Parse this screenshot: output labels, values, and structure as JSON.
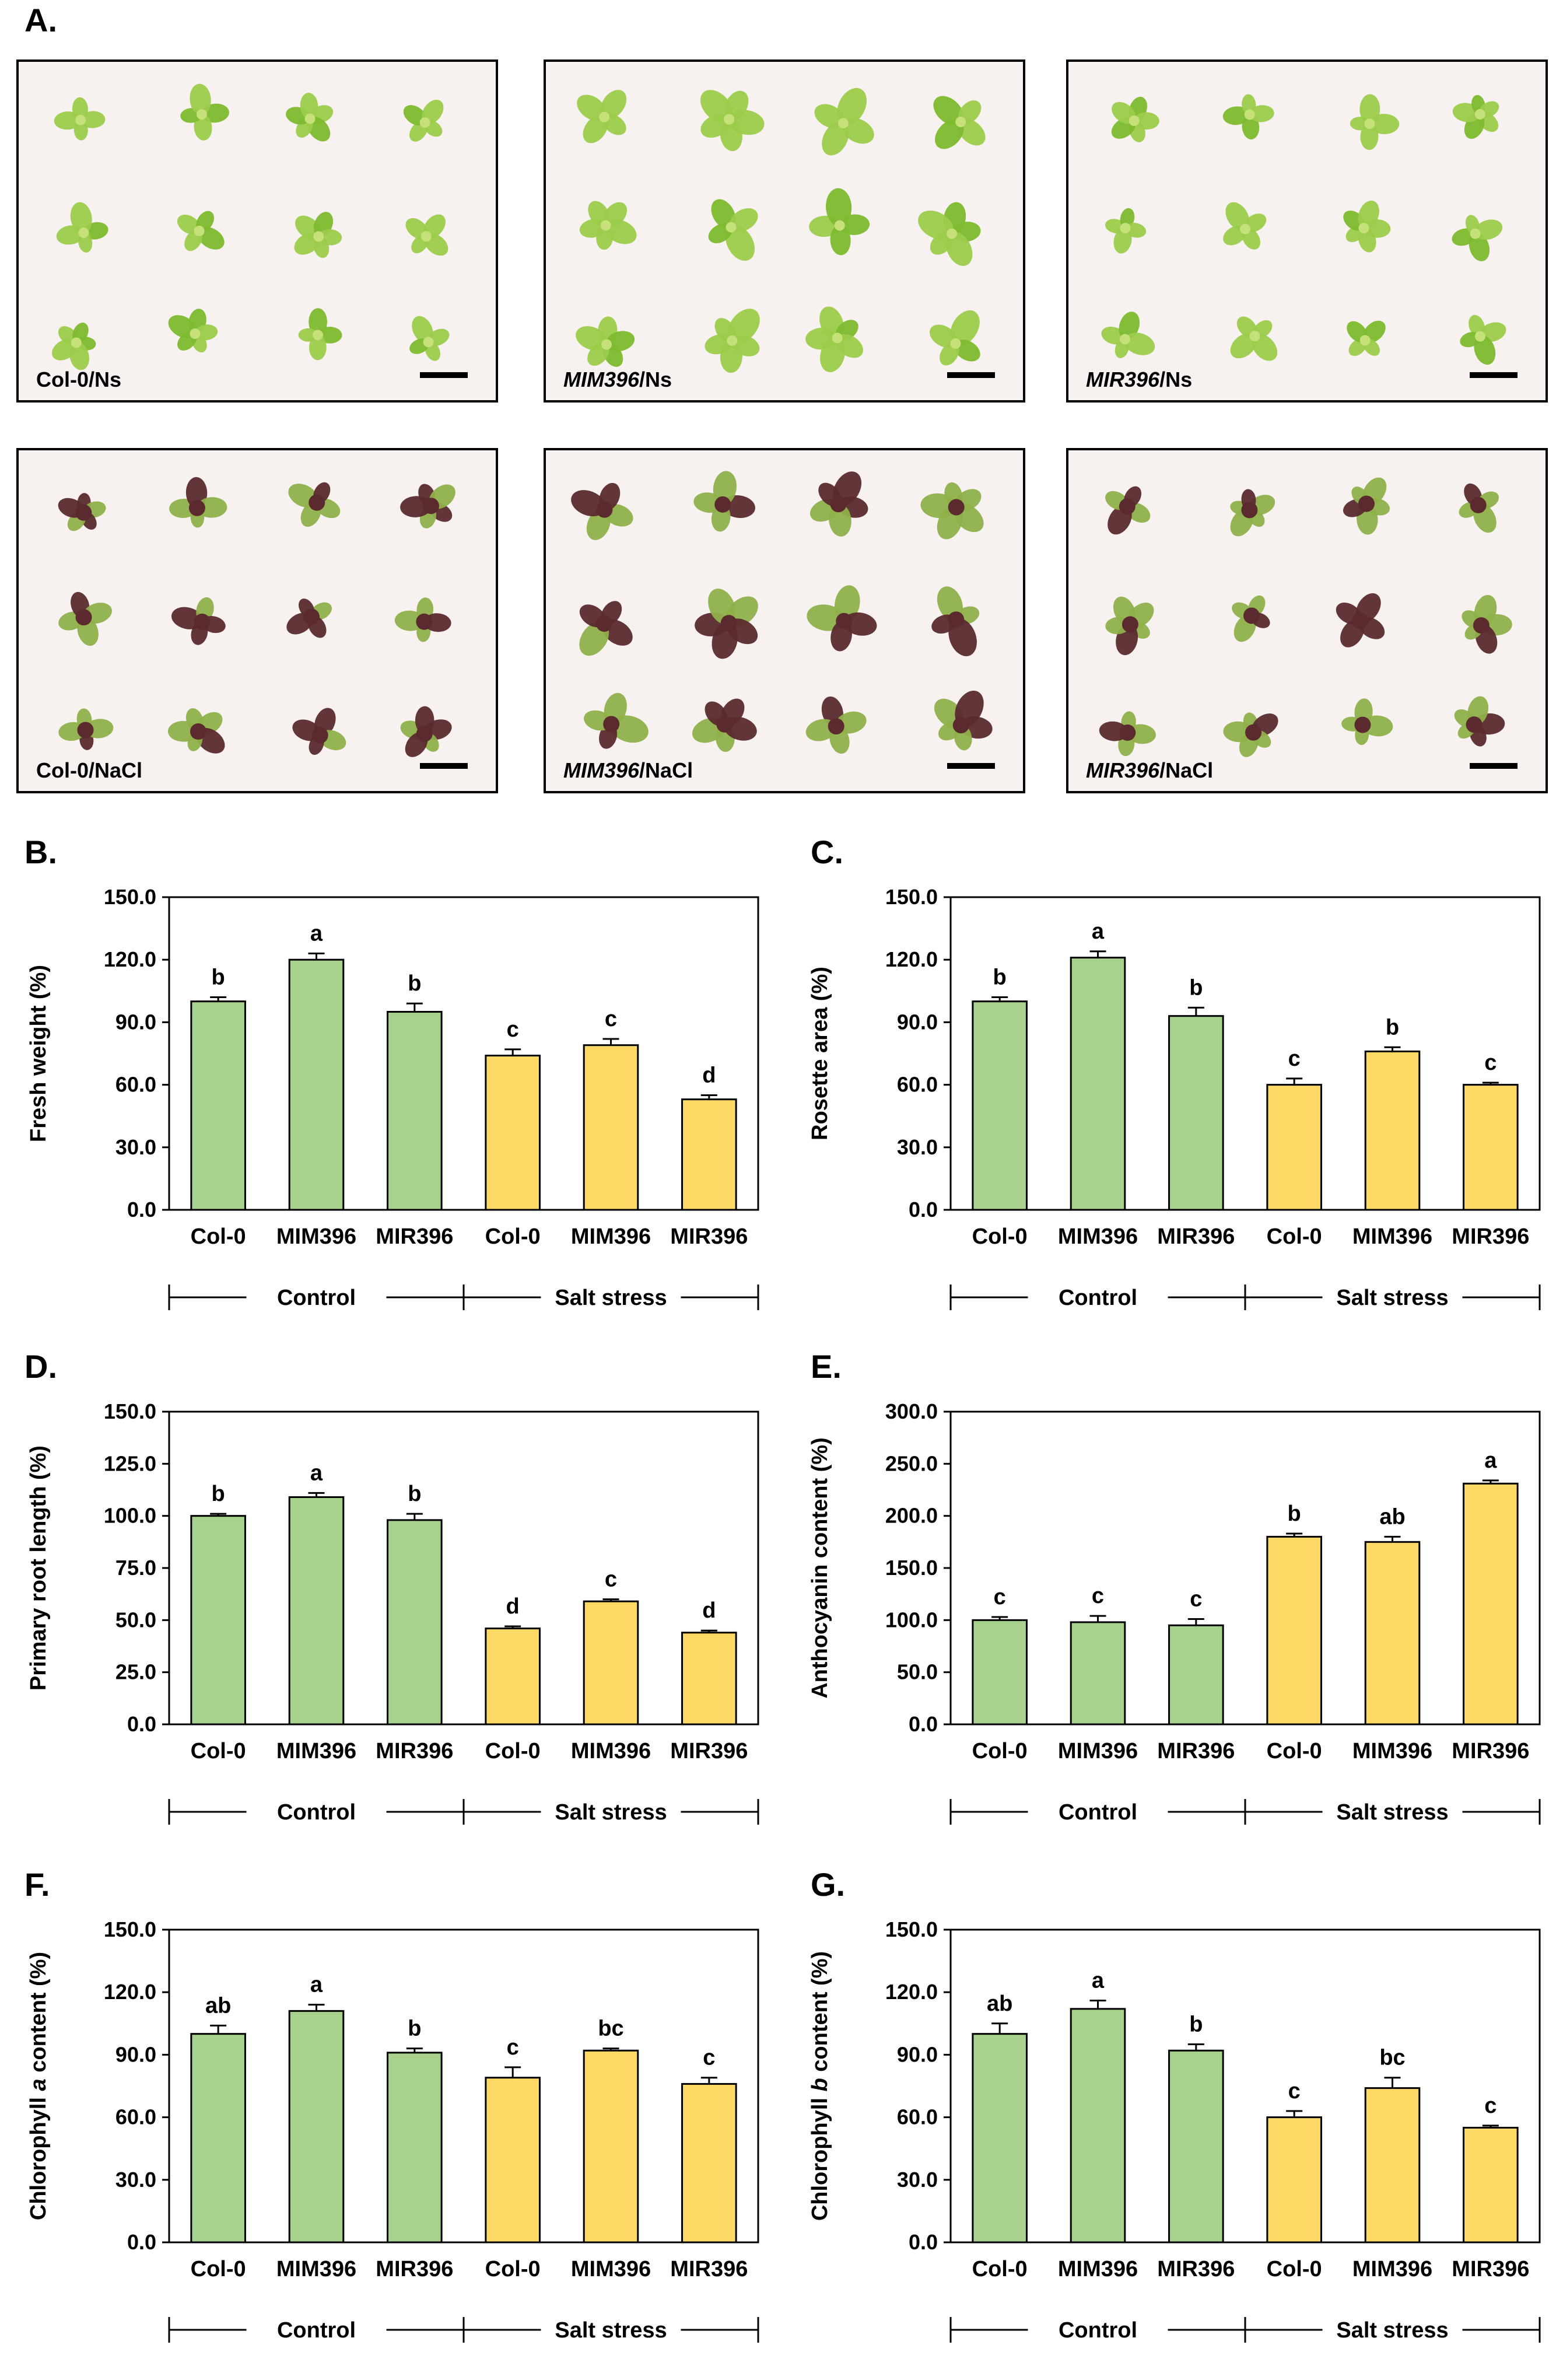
{
  "panels": {
    "A": "A.",
    "B": "B.",
    "C": "C.",
    "D": "D.",
    "E": "E.",
    "F": "F.",
    "G": "G."
  },
  "photos": [
    {
      "genotype": "Col-0",
      "italic": false,
      "condition": "/Ns",
      "treatment": "control"
    },
    {
      "genotype": "MIM396",
      "italic": true,
      "condition": "/Ns",
      "treatment": "control"
    },
    {
      "genotype": "MIR396",
      "italic": true,
      "condition": "/Ns",
      "treatment": "control"
    },
    {
      "genotype": "Col-0",
      "italic": false,
      "condition": "/NaCl",
      "treatment": "salt"
    },
    {
      "genotype": "MIM396",
      "italic": true,
      "condition": "/NaCl",
      "treatment": "salt"
    },
    {
      "genotype": "MIR396",
      "italic": true,
      "condition": "/NaCl",
      "treatment": "salt"
    }
  ],
  "colors": {
    "control_bar": "#a9d18e",
    "salt_bar": "#ffd966",
    "leaf_green": "#9ccc4a",
    "leaf_dark": "#5a2a2e",
    "photo_bg": "#f7f1ef"
  },
  "chart_data": [
    {
      "id": "B",
      "type": "bar",
      "ylabel": "Fresh weight (%)",
      "ylabel_italic_part": "",
      "ylim": [
        0,
        150
      ],
      "yticks": [
        "0.0",
        "30.0",
        "60.0",
        "90.0",
        "120.0",
        "150.0"
      ],
      "categories": [
        "Col-0",
        "MIM396",
        "MIR396",
        "Col-0",
        "MIM396",
        "MIR396"
      ],
      "values": [
        100,
        120,
        95,
        74,
        79,
        53
      ],
      "errors": [
        2,
        3,
        4,
        3,
        3,
        2
      ],
      "letters": [
        "b",
        "a",
        "b",
        "c",
        "c",
        "d"
      ],
      "groups": [
        "Control",
        "Salt stress"
      ]
    },
    {
      "id": "C",
      "type": "bar",
      "ylabel": "Rosette area (%)",
      "ylabel_italic_part": "",
      "ylim": [
        0,
        150
      ],
      "yticks": [
        "0.0",
        "30.0",
        "60.0",
        "90.0",
        "120.0",
        "150.0"
      ],
      "categories": [
        "Col-0",
        "MIM396",
        "MIR396",
        "Col-0",
        "MIM396",
        "MIR396"
      ],
      "values": [
        100,
        121,
        93,
        60,
        76,
        60
      ],
      "errors": [
        2,
        3,
        4,
        3,
        2,
        1
      ],
      "letters": [
        "b",
        "a",
        "b",
        "c",
        "b",
        "c"
      ],
      "groups": [
        "Control",
        "Salt stress"
      ]
    },
    {
      "id": "D",
      "type": "bar",
      "ylabel": "Primary root length (%)",
      "ylabel_italic_part": "",
      "ylim": [
        0,
        150
      ],
      "yticks": [
        "0.0",
        "25.0",
        "50.0",
        "75.0",
        "100.0",
        "125.0",
        "150.0"
      ],
      "categories": [
        "Col-0",
        "MIM396",
        "MIR396",
        "Col-0",
        "MIM396",
        "MIR396"
      ],
      "values": [
        100,
        109,
        98,
        46,
        59,
        44
      ],
      "errors": [
        1,
        2,
        3,
        1,
        1,
        1
      ],
      "letters": [
        "b",
        "a",
        "b",
        "d",
        "c",
        "d"
      ],
      "groups": [
        "Control",
        "Salt stress"
      ]
    },
    {
      "id": "E",
      "type": "bar",
      "ylabel": "Anthocyanin content (%)",
      "ylabel_italic_part": "",
      "ylim": [
        0,
        300
      ],
      "yticks": [
        "0.0",
        "50.0",
        "100.0",
        "150.0",
        "200.0",
        "250.0",
        "300.0"
      ],
      "categories": [
        "Col-0",
        "MIM396",
        "MIR396",
        "Col-0",
        "MIM396",
        "MIR396"
      ],
      "values": [
        100,
        98,
        95,
        180,
        175,
        231
      ],
      "errors": [
        3,
        6,
        6,
        3,
        5,
        3
      ],
      "letters": [
        "c",
        "c",
        "c",
        "b",
        "ab",
        "a"
      ],
      "groups": [
        "Control",
        "Salt stress"
      ]
    },
    {
      "id": "F",
      "type": "bar",
      "ylabel": "Chlorophyll a content  (%)",
      "ylabel_italic_part": "a",
      "ylim": [
        0,
        150
      ],
      "yticks": [
        "0.0",
        "30.0",
        "60.0",
        "90.0",
        "120.0",
        "150.0"
      ],
      "categories": [
        "Col-0",
        "MIM396",
        "MIR396",
        "Col-0",
        "MIM396",
        "MIR396"
      ],
      "values": [
        100,
        111,
        91,
        79,
        92,
        76
      ],
      "errors": [
        4,
        3,
        2,
        5,
        1,
        3
      ],
      "letters": [
        "ab",
        "a",
        "b",
        "c",
        "bc",
        "c"
      ],
      "groups": [
        "Control",
        "Salt stress"
      ]
    },
    {
      "id": "G",
      "type": "bar",
      "ylabel": "Chlorophyll b content  (%)",
      "ylabel_italic_part": "b",
      "ylim": [
        0,
        150
      ],
      "yticks": [
        "0.0",
        "30.0",
        "60.0",
        "90.0",
        "120.0",
        "150.0"
      ],
      "categories": [
        "Col-0",
        "MIM396",
        "MIR396",
        "Col-0",
        "MIM396",
        "MIR396"
      ],
      "values": [
        100,
        112,
        92,
        60,
        74,
        55
      ],
      "errors": [
        5,
        4,
        3,
        3,
        5,
        1
      ],
      "letters": [
        "ab",
        "a",
        "b",
        "c",
        "bc",
        "c"
      ],
      "groups": [
        "Control",
        "Salt stress"
      ]
    }
  ]
}
